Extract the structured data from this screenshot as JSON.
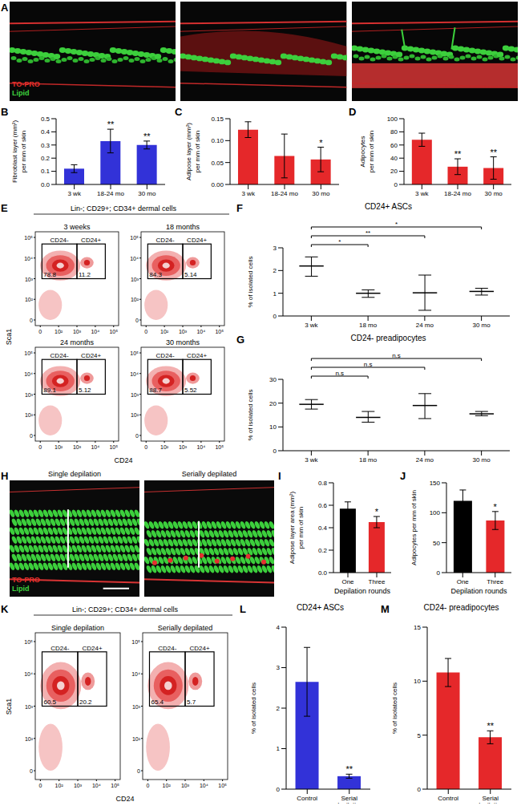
{
  "images": {
    "A": {
      "label": "A",
      "legend": [
        {
          "text": "TO-PRO",
          "color": "#e8302c"
        },
        {
          "text": "Lipid",
          "color": "#3ed23e"
        }
      ]
    },
    "H": {
      "label": "H",
      "titles": [
        "Single depilation",
        "Serially depilated"
      ],
      "legend": [
        {
          "text": "TO-PRO",
          "color": "#e8302c"
        },
        {
          "text": "Lipid",
          "color": "#3ed23e"
        }
      ]
    }
  },
  "flow": {
    "E": {
      "label": "E",
      "title": "Lin-; CD29+; CD34+ dermal cells",
      "y_label": "Sca1",
      "x_label": "CD24",
      "ticks": [
        "0",
        "10²",
        "10³",
        "10⁴",
        "10⁵"
      ],
      "plots": [
        {
          "title": "3 weeks",
          "gates": [
            {
              "name": "CD24-",
              "value": 78.8
            },
            {
              "name": "CD24+",
              "value": 11.2
            }
          ]
        },
        {
          "title": "18 months",
          "gates": [
            {
              "name": "CD24-",
              "value": 84.3
            },
            {
              "name": "CD24+",
              "value": 5.14
            }
          ]
        },
        {
          "title": "24 months",
          "gates": [
            {
              "name": "CD24-",
              "value": 89.1
            },
            {
              "name": "CD24+",
              "value": 5.12
            }
          ]
        },
        {
          "title": "30 months",
          "gates": [
            {
              "name": "CD24-",
              "value": 88.7
            },
            {
              "name": "CD24+",
              "value": 5.52
            }
          ]
        }
      ]
    },
    "K": {
      "label": "K",
      "title": "Lin-; CD29+; CD34+ dermal cells",
      "y_label": "Sca1",
      "x_label": "CD24",
      "ticks": [
        "0",
        "10²",
        "10³",
        "10⁴",
        "10⁵"
      ],
      "plots": [
        {
          "title": "Single depilation",
          "gates": [
            {
              "name": "CD24-",
              "value": 60.5
            },
            {
              "name": "CD24+",
              "value": 20.2
            }
          ]
        },
        {
          "title": "Serially depilated",
          "gates": [
            {
              "name": "CD24-",
              "value": 65.4
            },
            {
              "name": "CD24+",
              "value": 5.7
            }
          ]
        }
      ]
    }
  },
  "chart_data": [
    {
      "label": "B",
      "type": "bar",
      "y_label": [
        "Fibroblast layer (mm²)",
        "per mm of skin"
      ],
      "categories": [
        "3 wk",
        "18-24 mo",
        "30 mo"
      ],
      "values": [
        0.12,
        0.33,
        0.3
      ],
      "errors": [
        0.03,
        0.09,
        0.03
      ],
      "color": "#3232d8",
      "ylim": [
        0,
        0.5
      ],
      "yticks": [
        {
          "value": 0,
          "label": "0.0"
        },
        0.1,
        0.2,
        0.3,
        0.4,
        0.5
      ],
      "annotations": [
        null,
        "**",
        "**"
      ]
    },
    {
      "label": "C",
      "type": "bar",
      "y_label": [
        "Adipose layer (mm²)",
        "per mm of skin"
      ],
      "categories": [
        "3 wk",
        "18-24 mo",
        "30 mo"
      ],
      "values": [
        0.125,
        0.065,
        0.057
      ],
      "errors": [
        0.018,
        0.05,
        0.028
      ],
      "color": "#e5282a",
      "ylim": [
        0,
        0.15
      ],
      "yticks": [
        {
          "value": 0,
          "label": "0.00"
        },
        0.05,
        {
          "value": 0.1,
          "label": "0.10"
        },
        0.15
      ],
      "annotations": [
        null,
        null,
        "*"
      ]
    },
    {
      "label": "D",
      "type": "bar",
      "y_label": [
        "Adipocytes",
        "per mm of skin"
      ],
      "categories": [
        "3 wk",
        "18-24 mo",
        "30 mo"
      ],
      "values": [
        68,
        27,
        25
      ],
      "errors": [
        10,
        12,
        17
      ],
      "color": "#e5282a",
      "ylim": [
        0,
        100
      ],
      "yticks": [
        0,
        20,
        40,
        60,
        80,
        100
      ],
      "annotations": [
        null,
        "**",
        "**"
      ]
    },
    {
      "label": "F",
      "type": "range",
      "title": "CD24+ ASCs",
      "y_label": [
        "% of isolated cells"
      ],
      "categories": [
        "3 wk",
        "18 mo",
        "24 mo",
        "30 mo"
      ],
      "values": [
        2.2,
        1.0,
        1.02,
        1.08
      ],
      "errors": [
        [
          0.45,
          0.4
        ],
        [
          0.18,
          0.15
        ],
        [
          0.77,
          0.78
        ],
        [
          0.16,
          0.14
        ]
      ],
      "color": "#000000",
      "ylim": [
        0,
        3
      ],
      "yticks": [
        0,
        1,
        2,
        3
      ],
      "comparisons": [
        {
          "from": 0,
          "to": 1,
          "label": "*"
        },
        {
          "from": 0,
          "to": 2,
          "label": "**"
        },
        {
          "from": 0,
          "to": 3,
          "label": "*"
        }
      ]
    },
    {
      "label": "G",
      "type": "range",
      "title": "CD24- preadipocytes",
      "y_label": [
        "% of isolated cells"
      ],
      "categories": [
        "3 wk",
        "18 mo",
        "24 mo",
        "30 mo"
      ],
      "values": [
        19.5,
        14,
        19,
        15.5
      ],
      "errors": [
        [
          2,
          2
        ],
        [
          2,
          2.5
        ],
        [
          5.5,
          5
        ],
        [
          0.8,
          1
        ]
      ],
      "color": "#000000",
      "ylim": [
        0,
        30
      ],
      "yticks": [
        0,
        10,
        20,
        30
      ],
      "comparisons": [
        {
          "from": 0,
          "to": 1,
          "label": "n.s"
        },
        {
          "from": 0,
          "to": 2,
          "label": "n.s"
        },
        {
          "from": 0,
          "to": 3,
          "label": "n.s"
        }
      ]
    },
    {
      "label": "I",
      "type": "bar",
      "y_label": [
        "Adipose layer area (mm²)",
        "per mm of skin"
      ],
      "x_label": "Depilation rounds",
      "categories": [
        "One",
        "Three"
      ],
      "values": [
        0.57,
        0.45
      ],
      "errors": [
        0.06,
        0.05
      ],
      "colors": [
        "#000000",
        "#e5282a"
      ],
      "ylim": [
        0,
        0.8
      ],
      "yticks": [
        {
          "value": 0,
          "label": "0.0"
        },
        0.2,
        0.4,
        0.6,
        0.8
      ],
      "annotations": [
        null,
        "*"
      ]
    },
    {
      "label": "J",
      "type": "bar",
      "y_label": [
        "Adipocytes per mm of skin"
      ],
      "x_label": "Depilation rounds",
      "categories": [
        "One",
        "Three"
      ],
      "values": [
        120,
        87
      ],
      "errors": [
        18,
        15
      ],
      "colors": [
        "#000000",
        "#e5282a"
      ],
      "ylim": [
        0,
        150
      ],
      "yticks": [
        0,
        50,
        100,
        150
      ],
      "annotations": [
        null,
        "*"
      ]
    },
    {
      "label": "L",
      "type": "bar",
      "title": "CD24+ ASCs",
      "y_label": [
        "% of isolated cells"
      ],
      "categories": [
        "Control",
        "Serial depilation"
      ],
      "values": [
        2.65,
        0.32
      ],
      "errors": [
        0.85,
        0.05
      ],
      "color": "#3232d8",
      "ylim": [
        0,
        4
      ],
      "yticks": [
        0,
        1,
        2,
        3,
        4
      ],
      "annotations": [
        null,
        "**"
      ]
    },
    {
      "label": "M",
      "type": "bar",
      "title": "CD24- preadipocytes",
      "y_label": [
        "% of isolated cells"
      ],
      "categories": [
        "Control",
        "Serial depilation"
      ],
      "values": [
        10.8,
        4.8
      ],
      "errors": [
        1.3,
        0.6
      ],
      "color": "#e5282a",
      "ylim": [
        0,
        15
      ],
      "yticks": [
        0,
        5,
        10,
        15
      ],
      "annotations": [
        null,
        "**"
      ]
    }
  ]
}
